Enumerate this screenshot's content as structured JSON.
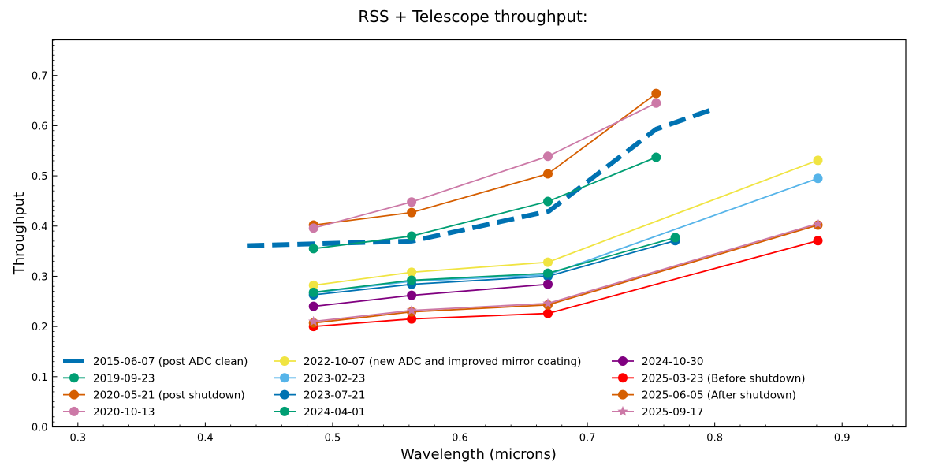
{
  "chart_data": {
    "type": "line",
    "title": "RSS + Telescope throughput:",
    "xlabel": "Wavelength (microns)",
    "ylabel": "Throughput",
    "xlim": [
      0.28,
      0.95
    ],
    "ylim": [
      0.0,
      0.771
    ],
    "xticks": [
      0.3,
      0.4,
      0.5,
      0.6,
      0.7,
      0.8,
      0.9
    ],
    "xtick_labels": [
      "0.3",
      "0.4",
      "0.5",
      "0.6",
      "0.7",
      "0.8",
      "0.9"
    ],
    "yticks": [
      0.0,
      0.1,
      0.2,
      0.3,
      0.4,
      0.5,
      0.6,
      0.7
    ],
    "ytick_labels": [
      "0.0",
      "0.1",
      "0.2",
      "0.3",
      "0.4",
      "0.5",
      "0.6",
      "0.7"
    ],
    "x_minor_step": 0.02,
    "y_minor_step": 0.01,
    "grid": false,
    "legend_position": "lower-left",
    "legend_columns": 3,
    "series": [
      {
        "name": "2015-06-07 (post ADC clean)",
        "color": "#0072b2",
        "style": "dashed",
        "marker": "none",
        "x": [
          0.4327,
          0.5623,
          0.67,
          0.754,
          0.8
        ],
        "y": [
          0.361,
          0.37,
          0.43,
          0.593,
          0.634
        ]
      },
      {
        "name": "2019-09-23",
        "color": "#009e73",
        "style": "solid",
        "marker": "circle",
        "x": [
          0.485,
          0.562,
          0.669,
          0.754
        ],
        "y": [
          0.355,
          0.38,
          0.449,
          0.537
        ]
      },
      {
        "name": "2020-05-21 (post shutdown)",
        "color": "#d55e00",
        "style": "solid",
        "marker": "circle",
        "x": [
          0.485,
          0.562,
          0.669,
          0.754
        ],
        "y": [
          0.402,
          0.427,
          0.504,
          0.664
        ]
      },
      {
        "name": "2020-10-13",
        "color": "#cc79a7",
        "style": "solid",
        "marker": "circle",
        "x": [
          0.485,
          0.562,
          0.669,
          0.754
        ],
        "y": [
          0.396,
          0.448,
          0.539,
          0.645
        ]
      },
      {
        "name": "2022-10-07 (new ADC and improved mirror coating)",
        "color": "#f0e442",
        "style": "solid",
        "marker": "circle",
        "x": [
          0.485,
          0.562,
          0.669,
          0.881
        ],
        "y": [
          0.282,
          0.308,
          0.328,
          0.531
        ]
      },
      {
        "name": "2023-02-23",
        "color": "#56b4e9",
        "style": "solid",
        "marker": "circle",
        "x": [
          0.485,
          0.562,
          0.669,
          0.881
        ],
        "y": [
          0.267,
          0.29,
          0.303,
          0.495
        ]
      },
      {
        "name": "2023-07-21",
        "color": "#0072b2",
        "style": "solid",
        "marker": "circle",
        "x": [
          0.485,
          0.562,
          0.669,
          0.769
        ],
        "y": [
          0.263,
          0.284,
          0.3,
          0.371
        ]
      },
      {
        "name": "2024-04-01",
        "color": "#009e73",
        "style": "solid",
        "marker": "circle",
        "x": [
          0.485,
          0.562,
          0.669,
          0.769
        ],
        "y": [
          0.268,
          0.292,
          0.306,
          0.377
        ]
      },
      {
        "name": "2024-10-30",
        "color": "#800080",
        "style": "solid",
        "marker": "circle",
        "x": [
          0.485,
          0.562,
          0.669
        ],
        "y": [
          0.24,
          0.262,
          0.284
        ]
      },
      {
        "name": "2025-03-23 (Before shutdown)",
        "color": "#ff0000",
        "style": "solid",
        "marker": "circle",
        "x": [
          0.485,
          0.562,
          0.669,
          0.881
        ],
        "y": [
          0.2,
          0.215,
          0.226,
          0.371
        ]
      },
      {
        "name": "2025-06-05 (After shutdown)",
        "color": "#d55e00",
        "style": "solid",
        "marker": "circle",
        "x": [
          0.485,
          0.562,
          0.669,
          0.881
        ],
        "y": [
          0.207,
          0.229,
          0.243,
          0.402
        ]
      },
      {
        "name": "2025-09-17",
        "color": "#cc79a7",
        "style": "solid",
        "marker": "star",
        "x": [
          0.485,
          0.562,
          0.669,
          0.881
        ],
        "y": [
          0.21,
          0.232,
          0.246,
          0.405
        ]
      }
    ]
  }
}
